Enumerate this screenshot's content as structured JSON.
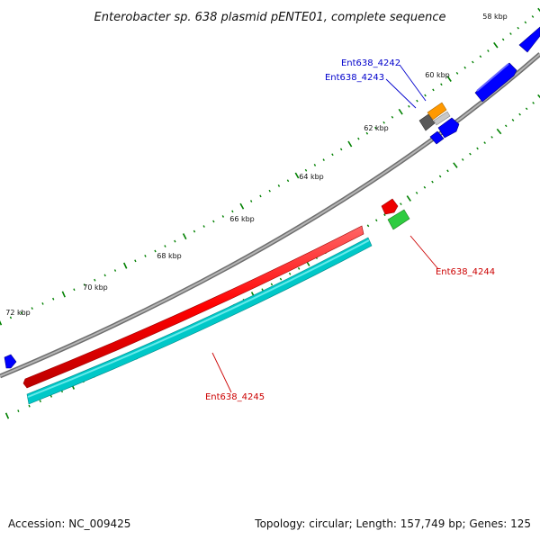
{
  "title": "Enterobacter sp. 638 plasmid pENTE01, complete sequence",
  "footer": {
    "accession": "Accession: NC_009425",
    "summary": "Topology: circular; Length: 157,749 bp; Genes: 125"
  },
  "tick_labels": [
    "58 kbp",
    "60 kbp",
    "62 kbp",
    "64 kbp",
    "66 kbp",
    "68 kbp",
    "70 kbp",
    "72 kbp"
  ],
  "gene_labels": {
    "g4242": "Ent638_4242",
    "g4243": "Ent638_4243",
    "g4244": "Ent638_4244",
    "g4245": "Ent638_4245"
  },
  "colors": {
    "backbone": "#808080",
    "tick": "#008000",
    "cds_forward": "#0000ff",
    "cds_reverse": "#ff0000",
    "orange_feature": "#ff9900",
    "gray_feature": "#666666",
    "green_feature": "#33cc33",
    "cyan_feature": "#00cccc",
    "label_blue": "#0000cc",
    "label_red": "#cc0000"
  }
}
